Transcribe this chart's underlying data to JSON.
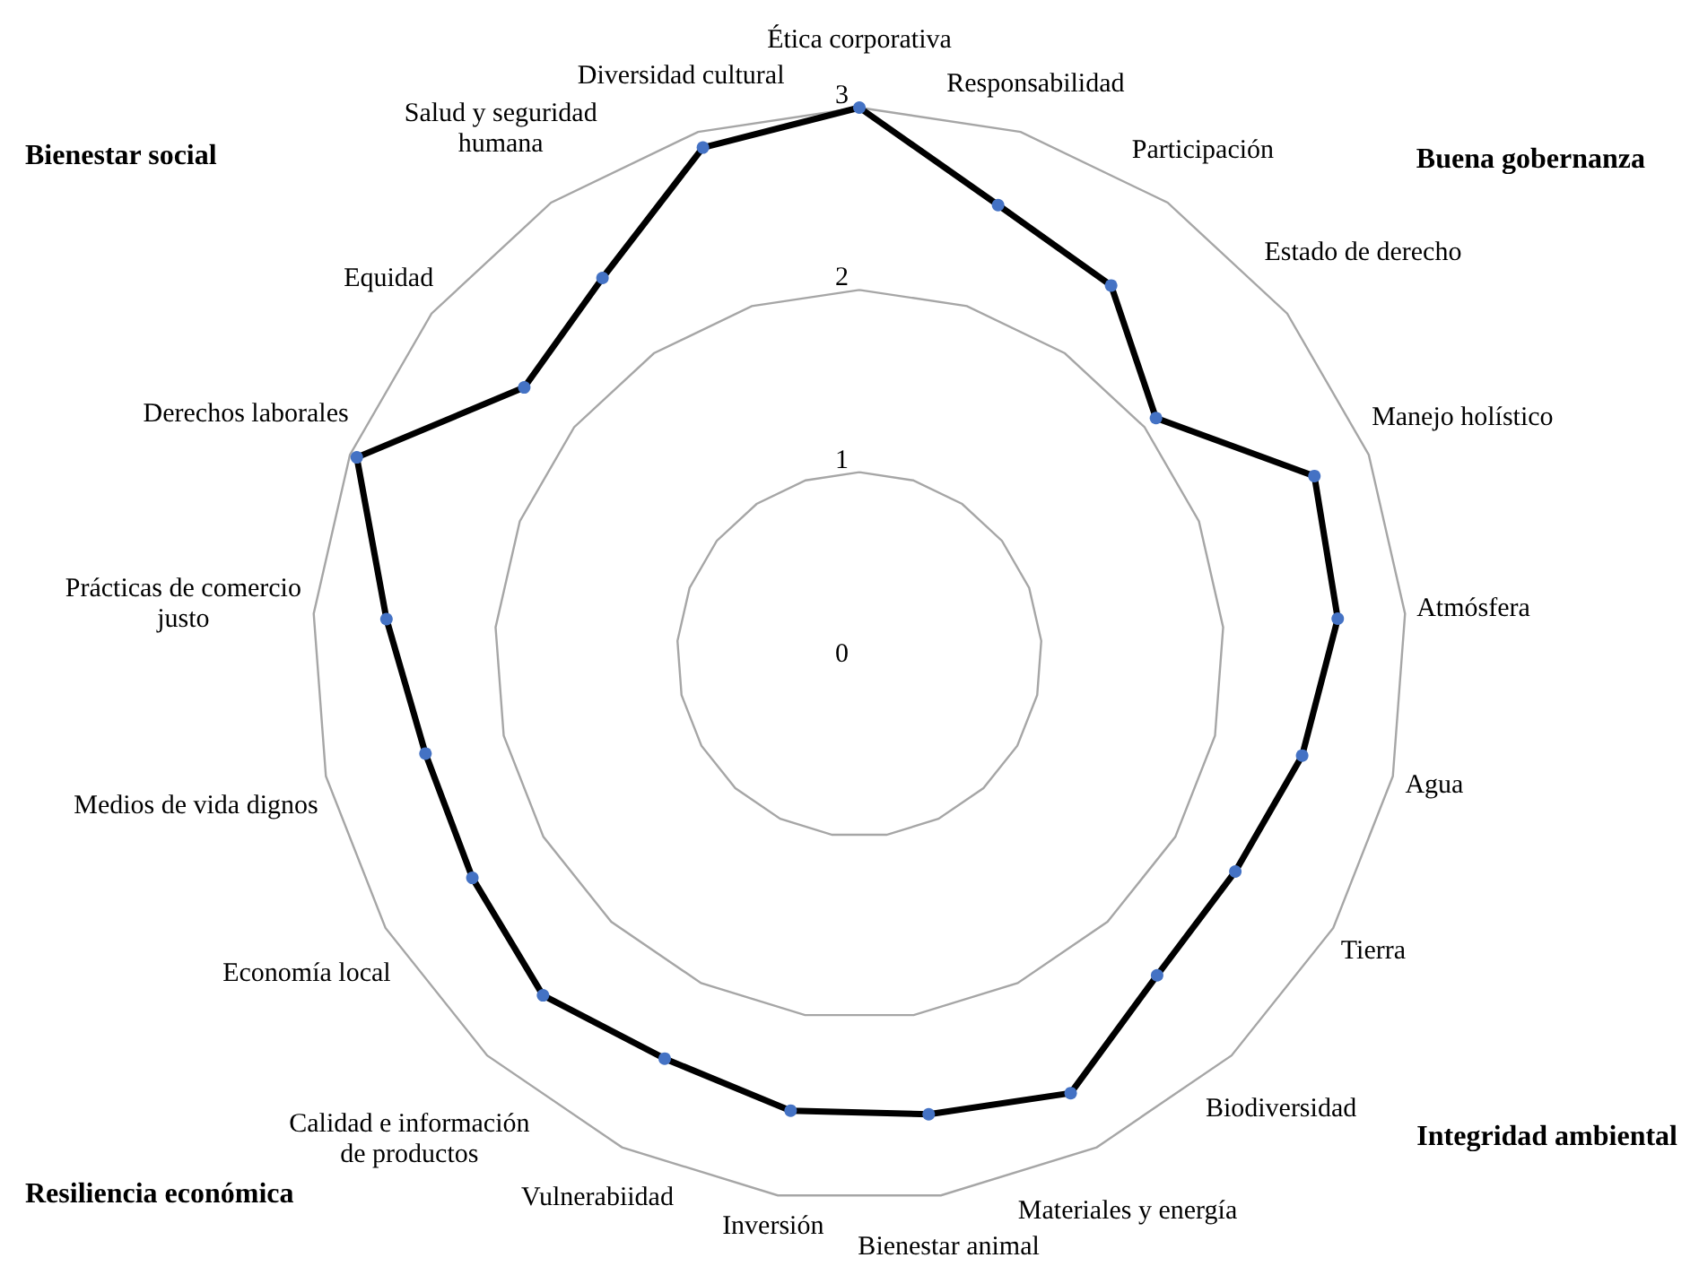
{
  "chart_data": {
    "type": "radar",
    "categories": [
      "Ética corporativa",
      "Responsabilidad",
      "Participación",
      "Estado de derecho",
      "Manejo holístico",
      "Atmósfera",
      "Agua",
      "Tierra",
      "Biodiversidad",
      "Materiales y energía",
      "Bienestar animal",
      "Inversión",
      "Vulnerabiidad",
      "Calidad e información de productos",
      "Economía local",
      "Medios de vida dignos",
      "Prácticas de comercio justo",
      "Derechos laborales",
      "Equidad",
      "Salud y seguridad humana",
      "Diversidad cultural"
    ],
    "series": [
      {
        "color": "#000000",
        "values": [
          3,
          2.58,
          2.45,
          2.08,
          2.68,
          2.63,
          2.49,
          2.38,
          2.4,
          2.67,
          2.55,
          2.53,
          2.46,
          2.55,
          2.45,
          2.44,
          2.6,
          2.96,
          2.35,
          2.5,
          2.91
        ]
      }
    ],
    "ylim": [
      0,
      3
    ],
    "yticks": [
      0,
      1,
      2,
      3
    ],
    "grid": true,
    "marker": "circle",
    "line_style": "solid",
    "annotations": [
      "Bienestar social",
      "Buena gobernanza",
      "Resiliencia económica",
      "Integridad ambiental"
    ]
  }
}
